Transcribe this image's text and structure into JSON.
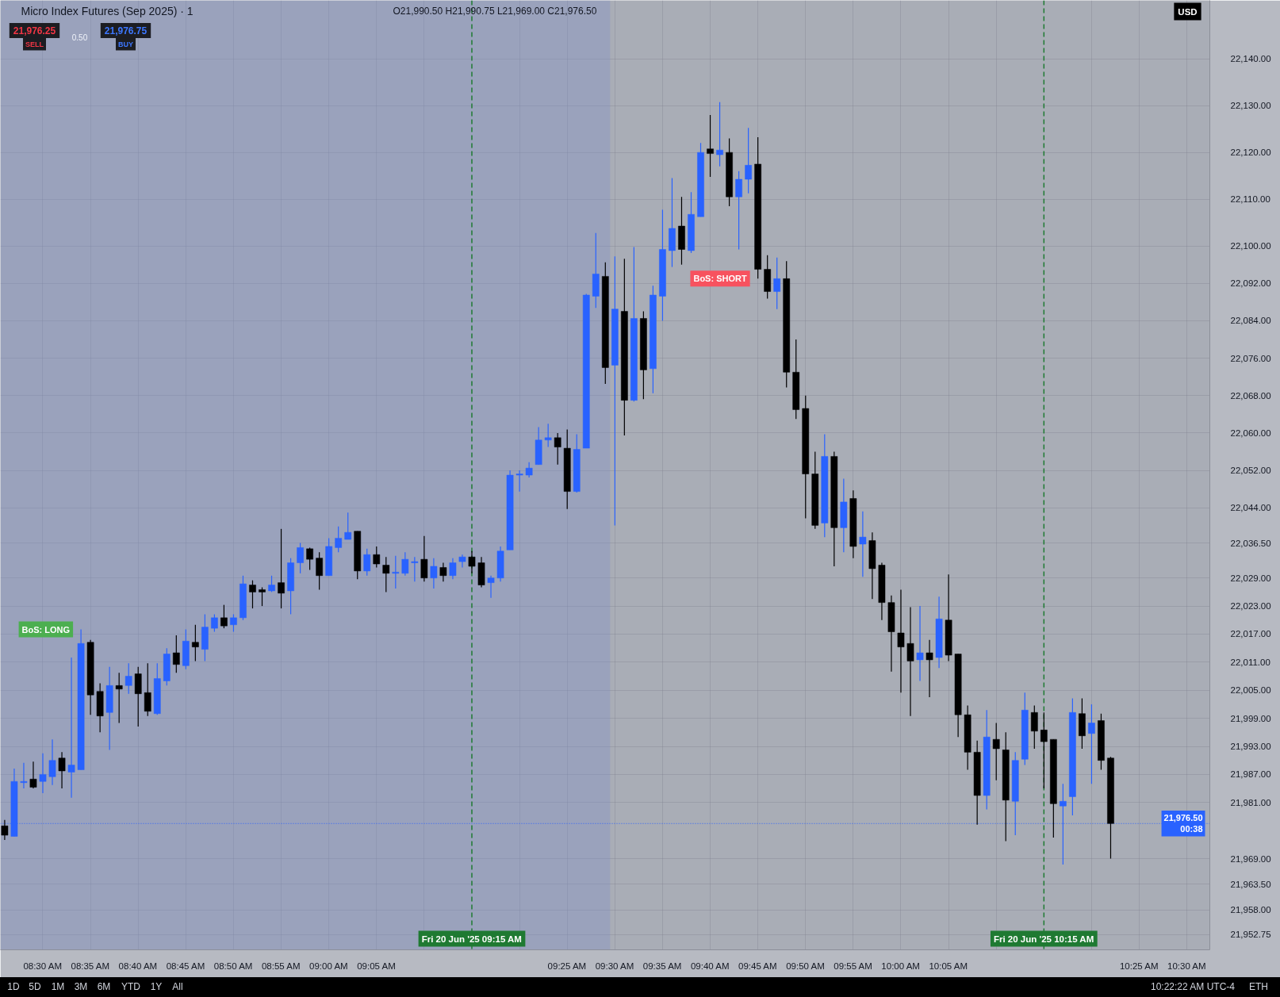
{
  "chart_data": {
    "type": "candlestick",
    "title": "Micro Index Futures (Sep 2025) · 1",
    "x": [
      "2025-06-20T08:26",
      "2025-06-20T08:27",
      "2025-06-20T08:28",
      "2025-06-20T08:29",
      "2025-06-20T08:30",
      "2025-06-20T08:31",
      "2025-06-20T08:32",
      "2025-06-20T08:33",
      "2025-06-20T08:34",
      "2025-06-20T08:35",
      "2025-06-20T08:36",
      "2025-06-20T08:37",
      "2025-06-20T08:38",
      "2025-06-20T08:39",
      "2025-06-20T08:40",
      "2025-06-20T08:41",
      "2025-06-20T08:42",
      "2025-06-20T08:43",
      "2025-06-20T08:44",
      "2025-06-20T08:45",
      "2025-06-20T08:46",
      "2025-06-20T08:47",
      "2025-06-20T08:48",
      "2025-06-20T08:49",
      "2025-06-20T08:50",
      "2025-06-20T08:51",
      "2025-06-20T08:52",
      "2025-06-20T08:53",
      "2025-06-20T08:54",
      "2025-06-20T08:55",
      "2025-06-20T08:56",
      "2025-06-20T08:57",
      "2025-06-20T08:58",
      "2025-06-20T08:59",
      "2025-06-20T09:00",
      "2025-06-20T09:01",
      "2025-06-20T09:02",
      "2025-06-20T09:03",
      "2025-06-20T09:04",
      "2025-06-20T09:05",
      "2025-06-20T09:06",
      "2025-06-20T09:07",
      "2025-06-20T09:08",
      "2025-06-20T09:09",
      "2025-06-20T09:10",
      "2025-06-20T09:11",
      "2025-06-20T09:12",
      "2025-06-20T09:13",
      "2025-06-20T09:14",
      "2025-06-20T09:15",
      "2025-06-20T09:16",
      "2025-06-20T09:17",
      "2025-06-20T09:18",
      "2025-06-20T09:19",
      "2025-06-20T09:20",
      "2025-06-20T09:21",
      "2025-06-20T09:22",
      "2025-06-20T09:23",
      "2025-06-20T09:24",
      "2025-06-20T09:25",
      "2025-06-20T09:26",
      "2025-06-20T09:27",
      "2025-06-20T09:28",
      "2025-06-20T09:29",
      "2025-06-20T09:30",
      "2025-06-20T09:31",
      "2025-06-20T09:32",
      "2025-06-20T09:33",
      "2025-06-20T09:34",
      "2025-06-20T09:35",
      "2025-06-20T09:36",
      "2025-06-20T09:37",
      "2025-06-20T09:38",
      "2025-06-20T09:39",
      "2025-06-20T09:40",
      "2025-06-20T09:41",
      "2025-06-20T09:42",
      "2025-06-20T09:43",
      "2025-06-20T09:44",
      "2025-06-20T09:45",
      "2025-06-20T09:46",
      "2025-06-20T09:47",
      "2025-06-20T09:48",
      "2025-06-20T09:49",
      "2025-06-20T09:50",
      "2025-06-20T09:51",
      "2025-06-20T09:52",
      "2025-06-20T09:53",
      "2025-06-20T09:54",
      "2025-06-20T09:55",
      "2025-06-20T09:56",
      "2025-06-20T09:57",
      "2025-06-20T09:58",
      "2025-06-20T09:59",
      "2025-06-20T10:00",
      "2025-06-20T10:01",
      "2025-06-20T10:02",
      "2025-06-20T10:03",
      "2025-06-20T10:04",
      "2025-06-20T10:05",
      "2025-06-20T10:06",
      "2025-06-20T10:07",
      "2025-06-20T10:08",
      "2025-06-20T10:09",
      "2025-06-20T10:10",
      "2025-06-20T10:11",
      "2025-06-20T10:12",
      "2025-06-20T10:13",
      "2025-06-20T10:14",
      "2025-06-20T10:15",
      "2025-06-20T10:16",
      "2025-06-20T10:17",
      "2025-06-20T10:18",
      "2025-06-20T10:19",
      "2025-06-20T10:20",
      "2025-06-20T10:21",
      "2025-06-20T10:22"
    ],
    "ohlc": [
      [
        21976,
        21977.25,
        21973,
        21974
      ],
      [
        21973.75,
        21988.25,
        21973.75,
        21985.5
      ],
      [
        21985.25,
        21989.5,
        21984,
        21985.5
      ],
      [
        21986,
        21989.75,
        21984,
        21984.25
      ],
      [
        21985.5,
        21991.5,
        21983,
        21987
      ],
      [
        21986.5,
        21994.5,
        21984.75,
        21990
      ],
      [
        21990.5,
        21991.75,
        21984,
        21987.75
      ],
      [
        21987.5,
        22012,
        21982,
        21989
      ],
      [
        21988,
        22018,
        21988,
        22015
      ],
      [
        22015.25,
        22015.75,
        21999.75,
        22004
      ],
      [
        22004.75,
        22006.5,
        21996,
        21999.5
      ],
      [
        22000.25,
        22010,
        21992.25,
        22006
      ],
      [
        22006,
        22008.75,
        21998,
        22005.25
      ],
      [
        22006,
        22010.75,
        22004.25,
        22008
      ],
      [
        22008.5,
        22010,
        21997.25,
        22004.25
      ],
      [
        22004.5,
        22010.75,
        21999.5,
        22000.5
      ],
      [
        22000,
        22010.75,
        21999.75,
        22007.5
      ],
      [
        22007,
        22014,
        22006,
        22012.75
      ],
      [
        22013,
        22016.75,
        22008.75,
        22010.5
      ],
      [
        22010.25,
        22018,
        22009.5,
        22015.5
      ],
      [
        22015.25,
        22019,
        22011.25,
        22014.25
      ],
      [
        22013.75,
        22021.25,
        22011.25,
        22018.5
      ],
      [
        22018.25,
        22021.25,
        22017.5,
        22020.5
      ],
      [
        22020.5,
        22023.25,
        22018.25,
        22018.75
      ],
      [
        22019,
        22021.25,
        22017.5,
        22020.5
      ],
      [
        22020.5,
        22029.5,
        22020,
        22027.75
      ],
      [
        22027.5,
        22028.5,
        22022.5,
        22026
      ],
      [
        22026.5,
        22027,
        22023,
        22026
      ],
      [
        22026.25,
        22029.5,
        22026,
        22027.5
      ],
      [
        22028,
        22039.5,
        22022.5,
        22025.75
      ],
      [
        22026.25,
        22033.25,
        22021.25,
        22032.25
      ],
      [
        22032.25,
        22036.5,
        22030,
        22035.5
      ],
      [
        22035.25,
        22035.5,
        22030.75,
        22033
      ],
      [
        22033.25,
        22034.5,
        22026.5,
        22029.5
      ],
      [
        22029.5,
        22037.5,
        22029.5,
        22035.75
      ],
      [
        22035.5,
        22040,
        22034.5,
        22037.5
      ],
      [
        22037.25,
        22043,
        22037.25,
        22038.75
      ],
      [
        22039,
        22039,
        22028.75,
        22030.5
      ],
      [
        22030.5,
        22035.25,
        22029.5,
        22034
      ],
      [
        22034,
        22035.75,
        22031.25,
        22032
      ],
      [
        22031.75,
        22033.5,
        22026,
        22030
      ],
      [
        22030,
        22033.75,
        22026.75,
        22030.25
      ],
      [
        22030,
        22034.5,
        22029.5,
        22033
      ],
      [
        22032.25,
        22033.5,
        22028.25,
        22032.5
      ],
      [
        22033,
        22038,
        22028.25,
        22029
      ],
      [
        22029,
        22033.25,
        22026.75,
        22031.5
      ],
      [
        22031.25,
        22032.25,
        22028.25,
        22029.5
      ],
      [
        22029.5,
        22033.25,
        22028.75,
        22032.25
      ],
      [
        22032.5,
        22034,
        22031.25,
        22033.5
      ],
      [
        22033.5,
        22034.75,
        22030,
        22031.5
      ],
      [
        22032.25,
        22033.5,
        22027,
        22027.5
      ],
      [
        22028,
        22029.5,
        22024.75,
        22029
      ],
      [
        22029,
        22035.75,
        22028.25,
        22034.75
      ],
      [
        22035,
        22052,
        22035,
        22051
      ],
      [
        22051,
        22052,
        22047.5,
        22051.25
      ],
      [
        22051,
        22053.75,
        22050.5,
        22052.5
      ],
      [
        22053.25,
        22061.25,
        22053.25,
        22058.5
      ],
      [
        22058.5,
        22062,
        22057,
        22059
      ],
      [
        22059,
        22060,
        22053.25,
        22057
      ],
      [
        22056.75,
        22060.75,
        22043.75,
        22047.5
      ],
      [
        22047.5,
        22059.75,
        22047.25,
        22056.5
      ],
      [
        22056.75,
        22089.75,
        22056.75,
        22089.5
      ],
      [
        22089.25,
        22102.75,
        22086.75,
        22094
      ],
      [
        22093.5,
        22096.5,
        22070.5,
        22074
      ],
      [
        22074.5,
        22097.75,
        22040.25,
        22086.5
      ],
      [
        22086,
        22097.25,
        22059.5,
        22067
      ],
      [
        22067,
        22099.75,
        22066.75,
        22084.5
      ],
      [
        22084.5,
        22086,
        22067.25,
        22073.5
      ],
      [
        22073.75,
        22091.5,
        22068.5,
        22089.5
      ],
      [
        22089.25,
        22107.75,
        22084,
        22099.25
      ],
      [
        22099,
        22114.5,
        22095.5,
        22103.75
      ],
      [
        22104.25,
        22110.5,
        22096,
        22099.25
      ],
      [
        22099,
        22111.5,
        22098.5,
        22106.75
      ],
      [
        22106.25,
        22122,
        22106.25,
        22120
      ],
      [
        22120.75,
        22128,
        22114.75,
        22119.75
      ],
      [
        22119.5,
        22130.75,
        22117,
        22120.5
      ],
      [
        22120,
        22123,
        22108.5,
        22110.5
      ],
      [
        22110.5,
        22116,
        22099.25,
        22114.25
      ],
      [
        22114.25,
        22125.25,
        22111.25,
        22117.25
      ],
      [
        22117.5,
        22123.25,
        22093,
        22095
      ],
      [
        22095,
        22098,
        22088.75,
        22090.25
      ],
      [
        22090.25,
        22097.5,
        22086.5,
        22093
      ],
      [
        22093,
        22096.75,
        22069.75,
        22073
      ],
      [
        22073,
        22080,
        22063,
        22065
      ],
      [
        22065.25,
        22068,
        22041.75,
        22051.25
      ],
      [
        22051.25,
        22056,
        22039.5,
        22040.25
      ],
      [
        22040.75,
        22059.75,
        22037.75,
        22055
      ],
      [
        22055,
        22056,
        22031.5,
        22039.75
      ],
      [
        22039.75,
        22050.25,
        22034.5,
        22045.25
      ],
      [
        22046,
        22047.75,
        22033.25,
        22035.75
      ],
      [
        22036.25,
        22043.25,
        22029.25,
        22037.75
      ],
      [
        22037,
        22038.75,
        22024.5,
        22031
      ],
      [
        22031.75,
        22032.25,
        22020,
        22023.75
      ],
      [
        22023.75,
        22025.25,
        22009,
        22017.5
      ],
      [
        22017.25,
        22026.5,
        22004.5,
        22014.25
      ],
      [
        22015,
        22022.75,
        21999.5,
        22011.25
      ],
      [
        22011.5,
        22023,
        22007,
        22013
      ],
      [
        22013,
        22015.75,
        22003.5,
        22011.5
      ],
      [
        22012,
        22025,
        22009.75,
        22020.25
      ],
      [
        22020,
        22029.75,
        22011.25,
        22012.5
      ],
      [
        22012.75,
        22012.75,
        21995,
        21999.75
      ],
      [
        21999.75,
        22001.75,
        21988,
        21991.75
      ],
      [
        21991.75,
        21994.25,
        21976.25,
        21982.5
      ],
      [
        21982.5,
        22000.75,
        21979.5,
        21995
      ],
      [
        21994.5,
        21998,
        21985.75,
        21992.5
      ],
      [
        21992.25,
        21996,
        21972.75,
        21981.5
      ],
      [
        21981.25,
        21991.75,
        21974,
        21990
      ],
      [
        21990.25,
        22004.5,
        21989,
        22000.75
      ],
      [
        22000.25,
        22001.75,
        21992.5,
        21996.25
      ],
      [
        21996.5,
        22000.25,
        21984,
        21994
      ],
      [
        21994.5,
        21994.5,
        21973.5,
        21980.75
      ],
      [
        21980.25,
        21985,
        21967.75,
        21981.25
      ],
      [
        21982.25,
        22003.25,
        21978.25,
        22000.25
      ],
      [
        22000,
        22003.25,
        21992.5,
        21995.25
      ],
      [
        21995.75,
        22002,
        21985,
        21998
      ],
      [
        21998.5,
        22000,
        21988,
        21990
      ],
      [
        21990.5,
        21990.75,
        21969,
        21976.5
      ]
    ],
    "colors": [
      "#000000",
      "#2962ff",
      "#2962ff",
      "#000000",
      "#2962ff",
      "#2962ff",
      "#000000",
      "#2962ff",
      "#2962ff",
      "#000000",
      "#000000",
      "#2962ff",
      "#000000",
      "#2962ff",
      "#000000",
      "#000000",
      "#2962ff",
      "#2962ff",
      "#000000",
      "#2962ff",
      "#000000",
      "#2962ff",
      "#2962ff",
      "#000000",
      "#2962ff",
      "#2962ff",
      "#000000",
      "#000000",
      "#2962ff",
      "#000000",
      "#2962ff",
      "#2962ff",
      "#000000",
      "#000000",
      "#2962ff",
      "#2962ff",
      "#2962ff",
      "#000000",
      "#2962ff",
      "#000000",
      "#000000",
      "#2962ff",
      "#2962ff",
      "#2962ff",
      "#000000",
      "#2962ff",
      "#000000",
      "#2962ff",
      "#2962ff",
      "#000000",
      "#000000",
      "#2962ff",
      "#2962ff",
      "#2962ff",
      "#2962ff",
      "#2962ff",
      "#2962ff",
      "#2962ff",
      "#000000",
      "#000000",
      "#2962ff",
      "#2962ff",
      "#2962ff",
      "#000000",
      "#2962ff",
      "#000000",
      "#2962ff",
      "#000000",
      "#2962ff",
      "#2962ff",
      "#2962ff",
      "#000000",
      "#2962ff",
      "#2962ff",
      "#000000",
      "#2962ff",
      "#000000",
      "#2962ff",
      "#2962ff",
      "#000000",
      "#000000",
      "#2962ff",
      "#000000",
      "#000000",
      "#000000",
      "#000000",
      "#2962ff",
      "#000000",
      "#2962ff",
      "#000000",
      "#2962ff",
      "#000000",
      "#000000",
      "#000000",
      "#000000",
      "#000000",
      "#2962ff",
      "#000000",
      "#2962ff",
      "#000000",
      "#000000",
      "#000000",
      "#000000",
      "#2962ff",
      "#000000",
      "#000000",
      "#2962ff",
      "#2962ff",
      "#000000",
      "#000000",
      "#000000",
      "#2962ff",
      "#2962ff",
      "#000000",
      "#2962ff",
      "#000000",
      "#000000"
    ],
    "xlim": [
      "2025-06-20T08:25:33",
      "2025-06-20T10:32:24"
    ],
    "ylim": [
      21949.5,
      22152.5
    ],
    "xticks": [
      {
        "value": "2025-06-20T08:30",
        "label": "08:30 AM"
      },
      {
        "value": "2025-06-20T08:35",
        "label": "08:35 AM"
      },
      {
        "value": "2025-06-20T08:40",
        "label": "08:40 AM"
      },
      {
        "value": "2025-06-20T08:45",
        "label": "08:45 AM"
      },
      {
        "value": "2025-06-20T08:50",
        "label": "08:50 AM"
      },
      {
        "value": "2025-06-20T08:55",
        "label": "08:55 AM"
      },
      {
        "value": "2025-06-20T09:00",
        "label": "09:00 AM"
      },
      {
        "value": "2025-06-20T09:05",
        "label": "09:05 AM"
      },
      {
        "value": "2025-06-20T09:10",
        "label": null
      },
      {
        "value": "2025-06-20T09:20",
        "label": null
      },
      {
        "value": "2025-06-20T09:25",
        "label": "09:25 AM"
      },
      {
        "value": "2025-06-20T09:30",
        "label": "09:30 AM"
      },
      {
        "value": "2025-06-20T09:35",
        "label": "09:35 AM"
      },
      {
        "value": "2025-06-20T09:40",
        "label": "09:40 AM"
      },
      {
        "value": "2025-06-20T09:45",
        "label": "09:45 AM"
      },
      {
        "value": "2025-06-20T09:50",
        "label": "09:50 AM"
      },
      {
        "value": "2025-06-20T09:55",
        "label": "09:55 AM"
      },
      {
        "value": "2025-06-20T10:00",
        "label": "10:00 AM"
      },
      {
        "value": "2025-06-20T10:05",
        "label": "10:05 AM"
      },
      {
        "value": "2025-06-20T10:10",
        "label": null
      },
      {
        "value": "2025-06-20T10:20",
        "label": null
      },
      {
        "value": "2025-06-20T10:25",
        "label": "10:25 AM"
      },
      {
        "value": "2025-06-20T10:30",
        "label": "10:30 AM"
      }
    ],
    "yticks": [
      {
        "value": 22140,
        "label": "22,140.00"
      },
      {
        "value": 22130,
        "label": "22,130.00"
      },
      {
        "value": 22120,
        "label": "22,120.00"
      },
      {
        "value": 22110,
        "label": "22,110.00"
      },
      {
        "value": 22100,
        "label": "22,100.00"
      },
      {
        "value": 22092,
        "label": "22,092.00"
      },
      {
        "value": 22084,
        "label": "22,084.00"
      },
      {
        "value": 22076,
        "label": "22,076.00"
      },
      {
        "value": 22068,
        "label": "22,068.00"
      },
      {
        "value": 22060,
        "label": "22,060.00"
      },
      {
        "value": 22052,
        "label": "22,052.00"
      },
      {
        "value": 22044,
        "label": "22,044.00"
      },
      {
        "value": 22036.5,
        "label": "22,036.50"
      },
      {
        "value": 22029,
        "label": "22,029.00"
      },
      {
        "value": 22023,
        "label": "22,023.00"
      },
      {
        "value": 22017,
        "label": "22,017.00"
      },
      {
        "value": 22011,
        "label": "22,011.00"
      },
      {
        "value": 22005,
        "label": "22,005.00"
      },
      {
        "value": 21999,
        "label": "21,999.00"
      },
      {
        "value": 21993,
        "label": "21,993.00"
      },
      {
        "value": 21987,
        "label": "21,987.00"
      },
      {
        "value": 21981,
        "label": "21,981.00"
      },
      {
        "value": 21969,
        "label": "21,969.00"
      },
      {
        "value": 21963.5,
        "label": "21,963.50"
      },
      {
        "value": 21958,
        "label": "21,958.00"
      },
      {
        "value": 21952.75,
        "label": "21,952.75"
      }
    ],
    "grid": true,
    "ref_lines": [
      {
        "axis": "x",
        "value": "2025-06-20T09:15",
        "label": "Fri 20 Jun '25 09:15 AM",
        "color": "#1f7a32",
        "line_style": "dashed"
      },
      {
        "axis": "x",
        "value": "2025-06-20T10:15",
        "label": "Fri 20 Jun '25 10:15 AM",
        "color": "#1f7a32",
        "line_style": "dashed"
      },
      {
        "axis": "y",
        "value": 21976.5,
        "label": "21,976.50\n00:38",
        "color": "#2962ff",
        "line_style": "dotted"
      }
    ],
    "bands": [
      {
        "axis": "x",
        "from": "2025-06-20T08:25:33",
        "to": "2025-06-20T09:29:30",
        "color": "#7d90c8"
      }
    ],
    "annotations": [
      "O21,990.50 H21,990.75 L21,969.00 C21,976.50",
      "21,976.25",
      "SELL",
      "0.50",
      "21,976.75",
      "BUY",
      "USD",
      {
        "text": "BoS: LONG",
        "x": "2025-06-20T08:34",
        "y": 22018
      },
      {
        "text": "BoS: SHORT",
        "x": "2025-06-20T09:45",
        "y": 22093
      },
      "1D",
      "5D",
      "1M",
      "3M",
      "6M",
      "YTD",
      "1Y",
      "All",
      "10:22:22 AM UTC-4",
      "ETH"
    ]
  }
}
